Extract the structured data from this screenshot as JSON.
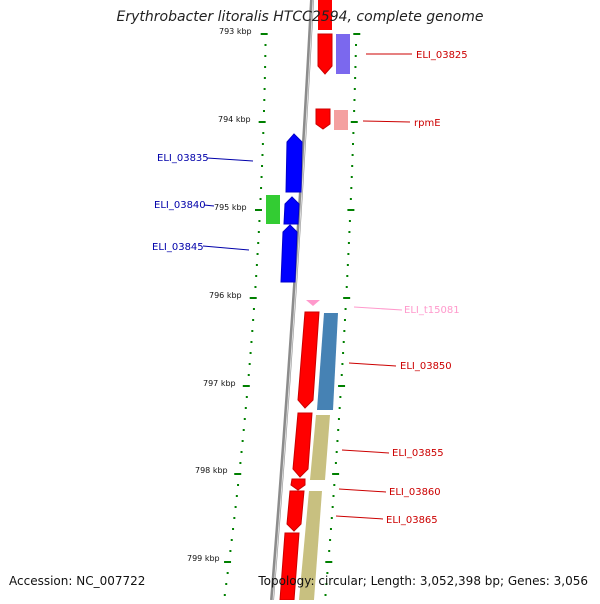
{
  "title": "Erythrobacter litoralis HTCC2594, complete genome",
  "accession": "Accession: NC_007722",
  "summary": "Topology: circular; Length: 3,052,398 bp; Genes: 3,056",
  "colors": {
    "backbone": "#8c8c8c",
    "ticks": "#008000",
    "gene_forward": "#ff0000",
    "gene_reverse": "#0000ee",
    "gene_highlight": "#33cc33",
    "trna": "#ff99cc",
    "product_purple": "#7b68ee",
    "product_pink": "#f4a0a0",
    "product_steel": "#4682b4",
    "product_khaki": "#c8c080"
  },
  "ticks": [
    {
      "label": "793 kbp"
    },
    {
      "label": "794 kbp"
    },
    {
      "label": "795 kbp"
    },
    {
      "label": "796 kbp"
    },
    {
      "label": "797 kbp"
    },
    {
      "label": "798 kbp"
    },
    {
      "label": "799 kbp"
    }
  ],
  "genes": [
    {
      "label": "ELI_03825",
      "strand": "+",
      "color": "#cc0000"
    },
    {
      "label": "rpmE",
      "strand": "+",
      "color": "#cc0000"
    },
    {
      "label": "ELI_03835",
      "strand": "-",
      "color": "#0000aa"
    },
    {
      "label": "ELI_03840",
      "strand": "-",
      "color": "#0000aa"
    },
    {
      "label": "ELI_03845",
      "strand": "-",
      "color": "#0000aa"
    },
    {
      "label": "ELI_t15081",
      "strand": "+",
      "color": "#ff99cc"
    },
    {
      "label": "ELI_03850",
      "strand": "+",
      "color": "#cc0000"
    },
    {
      "label": "ELI_03855",
      "strand": "+",
      "color": "#cc0000"
    },
    {
      "label": "ELI_03860",
      "strand": "+",
      "color": "#cc0000"
    },
    {
      "label": "ELI_03865",
      "strand": "+",
      "color": "#cc0000"
    }
  ]
}
